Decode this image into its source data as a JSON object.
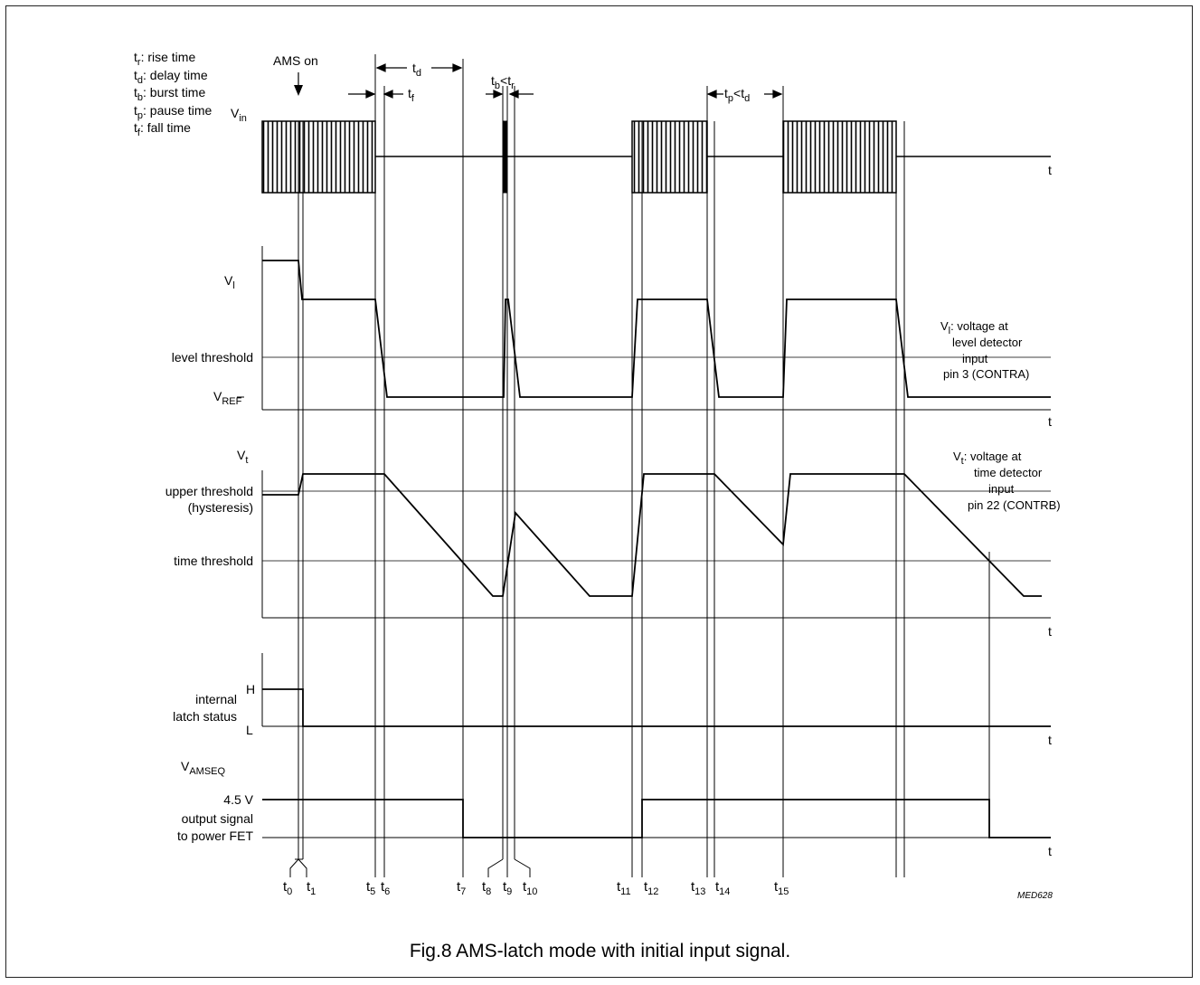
{
  "legend": [
    {
      "sym": "t",
      "sub": "r",
      "text": ": rise time"
    },
    {
      "sym": "t",
      "sub": "d",
      "text": ": delay time"
    },
    {
      "sym": "t",
      "sub": "b",
      "text": ": burst time"
    },
    {
      "sym": "t",
      "sub": "p",
      "text": ": pause time"
    },
    {
      "sym": "t",
      "sub": "f",
      "text": ": fall time"
    }
  ],
  "annotations": {
    "ams_on": "AMS on",
    "td_main": "t",
    "td_sub": "d",
    "tf_main": "t",
    "tf_sub": "f",
    "tb_main": "t",
    "tb_sub": "b",
    "tb_lt": "<t",
    "tb_sub2": "r",
    "tp_main": "t",
    "tp_sub": "p",
    "tp_lt": "<t",
    "tp_sub2": "d"
  },
  "vin": {
    "main": "V",
    "sub": "in"
  },
  "vl": {
    "main": "V",
    "sub": "l",
    "level_threshold": "level threshold",
    "vref_main": "V",
    "vref_sub": "REF",
    "note_main": "V",
    "note_sub": "l",
    "note_1": ": voltage at",
    "note_2": "level detector",
    "note_3": "input",
    "note_4": "pin 3 (CONTRA)"
  },
  "vt": {
    "main": "V",
    "sub": "t",
    "upper_threshold": "upper threshold",
    "hysteresis": "(hysteresis)",
    "time_threshold": "time threshold",
    "note_main": "V",
    "note_sub": "t",
    "note_1": ": voltage at",
    "note_2": "time detector",
    "note_3": "input",
    "note_4": "pin 22 (CONTRB)"
  },
  "latch": {
    "h": "H",
    "l": "L",
    "label_1": "internal",
    "label_2": "latch status"
  },
  "amseq": {
    "main": "V",
    "sub": "AMSEQ",
    "level": "4.5 V",
    "label_1": "output signal",
    "label_2": "to power FET"
  },
  "axis_t": "t",
  "time_marks": [
    {
      "main": "t",
      "sub": "0"
    },
    {
      "main": "t",
      "sub": "1"
    },
    {
      "main": "t",
      "sub": "5"
    },
    {
      "main": "t",
      "sub": "6"
    },
    {
      "main": "t",
      "sub": "7"
    },
    {
      "main": "t",
      "sub": "8"
    },
    {
      "main": "t",
      "sub": "9"
    },
    {
      "main": "t",
      "sub": "10"
    },
    {
      "main": "t",
      "sub": "11"
    },
    {
      "main": "t",
      "sub": "12"
    },
    {
      "main": "t",
      "sub": "13"
    },
    {
      "main": "t",
      "sub": "14"
    },
    {
      "main": "t",
      "sub": "15"
    }
  ],
  "code": "MED628",
  "caption": "Fig.8  AMS-latch mode with initial input signal."
}
